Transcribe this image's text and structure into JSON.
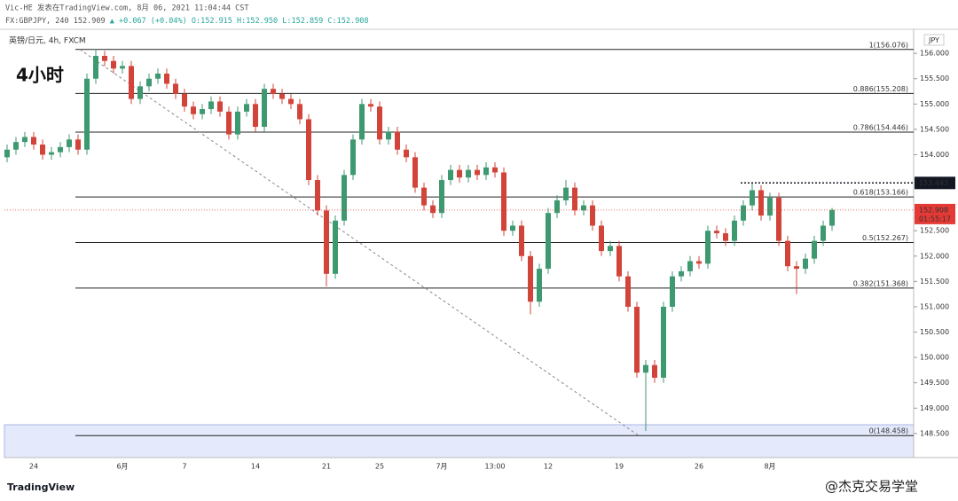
{
  "header": {
    "author_line": "Vic-HE 发表在TradingView.com, 8月 06, 2021 11:04:44 CST",
    "symbol": "FX:GBPJPY, 240",
    "price": "152.909",
    "change": "▲ +0.067 (+0.04%)",
    "open": "O:152.915",
    "high": "H:152.950",
    "low": "L:152.859",
    "close": "C:152.908"
  },
  "chart_data": {
    "type": "candlestick",
    "title": "英镑/日元, 4h, FXCM",
    "timeframe_label": "4小时",
    "currency": "JPY",
    "up_color": "#3d9970",
    "down_color": "#d2443a",
    "categories": [
      null,
      null,
      null,
      "24",
      null,
      null,
      null,
      null,
      null,
      null,
      null,
      null,
      null,
      "6月",
      null,
      null,
      null,
      null,
      null,
      null,
      "7",
      null,
      null,
      null,
      null,
      null,
      null,
      null,
      "14",
      null,
      null,
      null,
      null,
      null,
      null,
      null,
      "21",
      null,
      null,
      null,
      null,
      null,
      "25",
      null,
      null,
      null,
      null,
      null,
      null,
      "7月",
      null,
      null,
      null,
      null,
      null,
      "13:00",
      null,
      null,
      null,
      null,
      null,
      "12",
      null,
      null,
      null,
      null,
      null,
      null,
      null,
      "19",
      null,
      null,
      null,
      null,
      null,
      null,
      null,
      null,
      "26",
      null,
      null,
      null,
      null,
      null,
      null,
      null,
      "8月",
      null,
      null,
      null,
      null,
      null,
      null,
      null
    ],
    "open": [
      153.95,
      154.1,
      154.25,
      154.35,
      154.2,
      154.0,
      154.05,
      154.15,
      154.3,
      154.1,
      155.5,
      155.95,
      155.85,
      155.7,
      155.75,
      155.1,
      155.35,
      155.5,
      155.6,
      155.4,
      155.2,
      154.95,
      154.8,
      154.9,
      155.05,
      154.85,
      154.4,
      154.85,
      155.0,
      154.55,
      155.3,
      155.2,
      155.1,
      155.0,
      154.7,
      153.5,
      152.9,
      151.65,
      152.7,
      153.6,
      154.3,
      155.0,
      154.95,
      154.3,
      154.45,
      154.1,
      153.95,
      153.35,
      153.0,
      152.85,
      153.5,
      153.7,
      153.55,
      153.7,
      153.6,
      153.75,
      153.65,
      152.5,
      152.6,
      152.0,
      151.1,
      151.75,
      152.85,
      153.1,
      153.35,
      152.9,
      153.0,
      152.6,
      152.1,
      152.2,
      151.6,
      151.0,
      149.7,
      149.85,
      149.6,
      151.0,
      151.6,
      151.7,
      151.9,
      151.85,
      152.5,
      152.45,
      152.3,
      152.7,
      153.0,
      153.3,
      152.8,
      153.15,
      152.3,
      151.8,
      151.75,
      151.95,
      152.3,
      152.6
    ],
    "high": [
      154.2,
      154.35,
      154.45,
      154.45,
      154.3,
      154.15,
      154.25,
      154.4,
      154.4,
      155.6,
      156.08,
      156.05,
      155.95,
      155.85,
      155.85,
      155.45,
      155.6,
      155.7,
      155.7,
      155.5,
      155.3,
      155.05,
      155.0,
      155.15,
      155.15,
      154.95,
      154.95,
      155.1,
      155.1,
      155.4,
      155.4,
      155.3,
      155.2,
      155.1,
      154.8,
      153.6,
      153.0,
      152.8,
      153.7,
      154.4,
      155.1,
      155.1,
      155.05,
      154.55,
      154.55,
      154.2,
      154.05,
      153.45,
      153.1,
      153.6,
      153.8,
      153.8,
      153.8,
      153.8,
      153.85,
      153.85,
      153.75,
      152.7,
      152.7,
      152.1,
      151.85,
      152.95,
      153.2,
      153.5,
      153.45,
      153.1,
      153.1,
      152.7,
      152.3,
      152.3,
      151.7,
      151.1,
      149.95,
      149.95,
      151.1,
      151.7,
      151.8,
      152.0,
      152.0,
      152.6,
      152.6,
      152.55,
      152.8,
      153.1,
      153.44,
      153.4,
      153.25,
      153.25,
      152.4,
      151.9,
      152.05,
      152.4,
      152.7,
      152.95
    ],
    "low": [
      153.85,
      154.0,
      154.15,
      154.1,
      153.9,
      153.9,
      153.95,
      154.05,
      154.0,
      154.0,
      155.4,
      155.75,
      155.6,
      155.6,
      155.0,
      155.0,
      155.25,
      155.4,
      155.3,
      155.1,
      154.85,
      154.7,
      154.7,
      154.8,
      154.75,
      154.3,
      154.3,
      154.75,
      154.45,
      154.45,
      155.1,
      155.0,
      154.9,
      154.6,
      153.4,
      152.8,
      151.4,
      151.55,
      152.6,
      153.5,
      154.2,
      154.85,
      154.2,
      154.2,
      154.0,
      153.85,
      153.25,
      152.9,
      152.75,
      152.75,
      153.4,
      153.45,
      153.45,
      153.5,
      153.5,
      153.55,
      152.4,
      152.4,
      151.9,
      150.85,
      151.0,
      151.65,
      152.75,
      153.0,
      152.8,
      152.8,
      152.5,
      152.0,
      152.0,
      151.5,
      150.9,
      149.6,
      148.55,
      149.5,
      149.5,
      150.9,
      151.5,
      151.6,
      151.75,
      151.75,
      152.35,
      152.2,
      152.2,
      152.6,
      152.9,
      152.7,
      152.7,
      152.2,
      151.7,
      151.25,
      151.65,
      151.85,
      152.2,
      152.5
    ],
    "close": [
      154.1,
      154.25,
      154.35,
      154.2,
      154.0,
      154.05,
      154.15,
      154.3,
      154.1,
      155.5,
      155.95,
      155.85,
      155.7,
      155.75,
      155.1,
      155.35,
      155.5,
      155.6,
      155.4,
      155.2,
      154.95,
      154.8,
      154.9,
      155.05,
      154.85,
      154.4,
      154.85,
      155.0,
      154.55,
      155.3,
      155.2,
      155.1,
      155.0,
      154.7,
      153.5,
      152.9,
      151.65,
      152.7,
      153.6,
      154.3,
      155.0,
      154.95,
      154.3,
      154.45,
      154.1,
      153.95,
      153.35,
      153.0,
      152.85,
      153.5,
      153.7,
      153.55,
      153.7,
      153.6,
      153.75,
      153.65,
      152.5,
      152.6,
      152.0,
      151.1,
      151.75,
      152.85,
      153.1,
      153.35,
      152.9,
      153.0,
      152.6,
      152.1,
      152.2,
      151.6,
      151.0,
      149.7,
      149.85,
      149.6,
      151.0,
      151.6,
      151.7,
      151.9,
      151.85,
      152.5,
      152.45,
      152.3,
      152.7,
      153.0,
      153.3,
      152.8,
      153.15,
      152.3,
      151.8,
      151.75,
      151.95,
      152.3,
      152.6,
      152.91
    ],
    "ylim": [
      148.025,
      156.475
    ],
    "yticks": [
      {
        "value": 148.5,
        "label": "148.500"
      },
      {
        "value": 149.0,
        "label": "149.000"
      },
      {
        "value": 149.5,
        "label": "149.500"
      },
      {
        "value": 150.0,
        "label": "150.000"
      },
      {
        "value": 150.5,
        "label": "150.500"
      },
      {
        "value": 151.0,
        "label": "151.000"
      },
      {
        "value": 151.5,
        "label": "151.500"
      },
      {
        "value": 152.0,
        "label": "152.000"
      },
      {
        "value": 152.5,
        "label": "152.500"
      },
      {
        "value": 154.0,
        "label": "154.000"
      },
      {
        "value": 154.5,
        "label": "154.500"
      },
      {
        "value": 155.0,
        "label": "155.000"
      },
      {
        "value": 155.5,
        "label": "155.500"
      },
      {
        "value": 156.0,
        "label": "156.000"
      }
    ],
    "fib_levels": [
      {
        "value": 156.076,
        "label": "1(156.076)"
      },
      {
        "value": 155.208,
        "label": "0.886(155.208)"
      },
      {
        "value": 154.446,
        "label": "0.786(154.446)"
      },
      {
        "value": 153.166,
        "label": "0.618(153.166)"
      },
      {
        "value": 152.267,
        "label": "0.5(152.267)"
      },
      {
        "value": 151.368,
        "label": "0.382(151.368)"
      },
      {
        "value": 148.458,
        "label": "0(148.458)"
      }
    ],
    "marker_line": {
      "value": 153.443,
      "color": "#131722"
    },
    "last_price": {
      "value": 152.908,
      "countdown": "01:55:17",
      "color": "#e53935"
    }
  },
  "footer": {
    "logo": "TradingView",
    "watermark": "@杰克交易学堂"
  }
}
